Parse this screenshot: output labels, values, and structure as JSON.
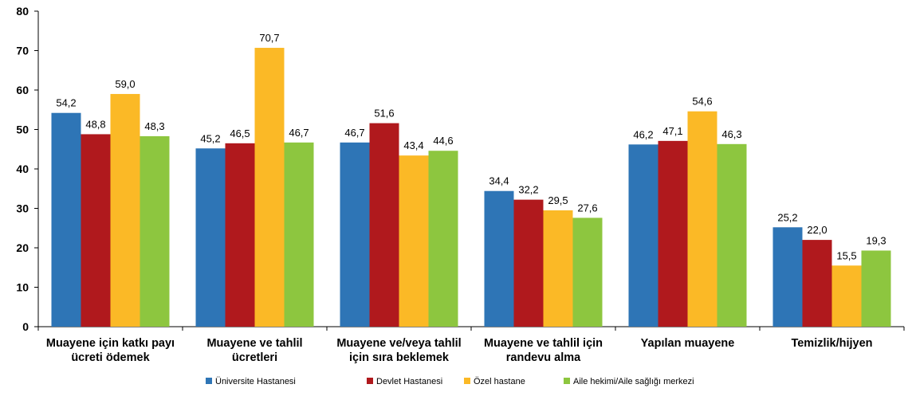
{
  "chart_data": {
    "type": "bar",
    "title": "",
    "xlabel": "",
    "ylabel": "",
    "ylim": [
      0,
      80
    ],
    "yticks": [
      "0",
      "10",
      "20",
      "30",
      "40",
      "50",
      "60",
      "70",
      "80"
    ],
    "grid": false,
    "legend_position": "bottom",
    "categories": [
      [
        "Muayene için katkı payı",
        "ücreti ödemek"
      ],
      [
        "Muayene ve tahlil",
        "ücretleri"
      ],
      [
        "Muayene ve/veya tahlil",
        "için sıra beklemek"
      ],
      [
        "Muayene ve tahlil için",
        "randevu alma"
      ],
      [
        "Yapılan muayene"
      ],
      [
        "Temizlik/hijyen"
      ]
    ],
    "series": [
      {
        "name": "Üniversite Hastanesi",
        "color": "#2E75B6",
        "values": [
          54.2,
          45.2,
          46.7,
          34.4,
          46.2,
          25.2
        ],
        "labels": [
          "54,2",
          "45,2",
          "46,7",
          "34,4",
          "46,2",
          "25,2"
        ]
      },
      {
        "name": "Devlet Hastanesi",
        "color": "#B0191D",
        "values": [
          48.8,
          46.5,
          51.6,
          32.2,
          47.1,
          22.0
        ],
        "labels": [
          "48,8",
          "46,5",
          "51,6",
          "32,2",
          "47,1",
          "22,0"
        ]
      },
      {
        "name": "Özel hastane",
        "color": "#FBB926",
        "values": [
          59.0,
          70.7,
          43.4,
          29.5,
          54.6,
          15.5
        ],
        "labels": [
          "59,0",
          "70,7",
          "43,4",
          "29,5",
          "54,6",
          "15,5"
        ]
      },
      {
        "name": "Aile hekimi/Aile sağlığı merkezi",
        "color": "#8DC63F",
        "values": [
          48.3,
          46.7,
          44.6,
          27.6,
          46.3,
          19.3
        ],
        "labels": [
          "48,3",
          "46,7",
          "44,6",
          "27,6",
          "46,3",
          "19,3"
        ]
      }
    ]
  }
}
